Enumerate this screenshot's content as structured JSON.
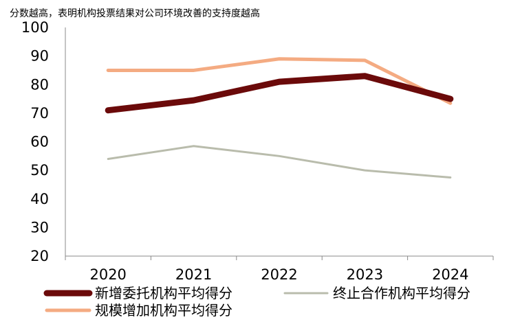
{
  "chart_data": {
    "type": "line",
    "title": "",
    "subtitle": "分数越高，表明机构投票结果对公司环境改善的支持度越高",
    "xlabel": "",
    "ylabel": "",
    "categories": [
      "2020",
      "2021",
      "2022",
      "2023",
      "2024"
    ],
    "ylim": [
      20,
      100
    ],
    "yticks": [
      20,
      30,
      40,
      50,
      60,
      70,
      80,
      90,
      100
    ],
    "grid": false,
    "legend_position": "bottom",
    "series": [
      {
        "name": "新增委托机构平均得分",
        "values": [
          71,
          74.5,
          81,
          83,
          75
        ],
        "color": "#6b0a0a"
      },
      {
        "name": "终止合作机构平均得分",
        "values": [
          54,
          58.5,
          55,
          50,
          47.5
        ],
        "color": "#b9bcac"
      },
      {
        "name": "规模增加机构平均得分",
        "values": [
          85,
          85,
          89,
          88.5,
          73.5
        ],
        "color": "#f4ab82"
      }
    ]
  }
}
